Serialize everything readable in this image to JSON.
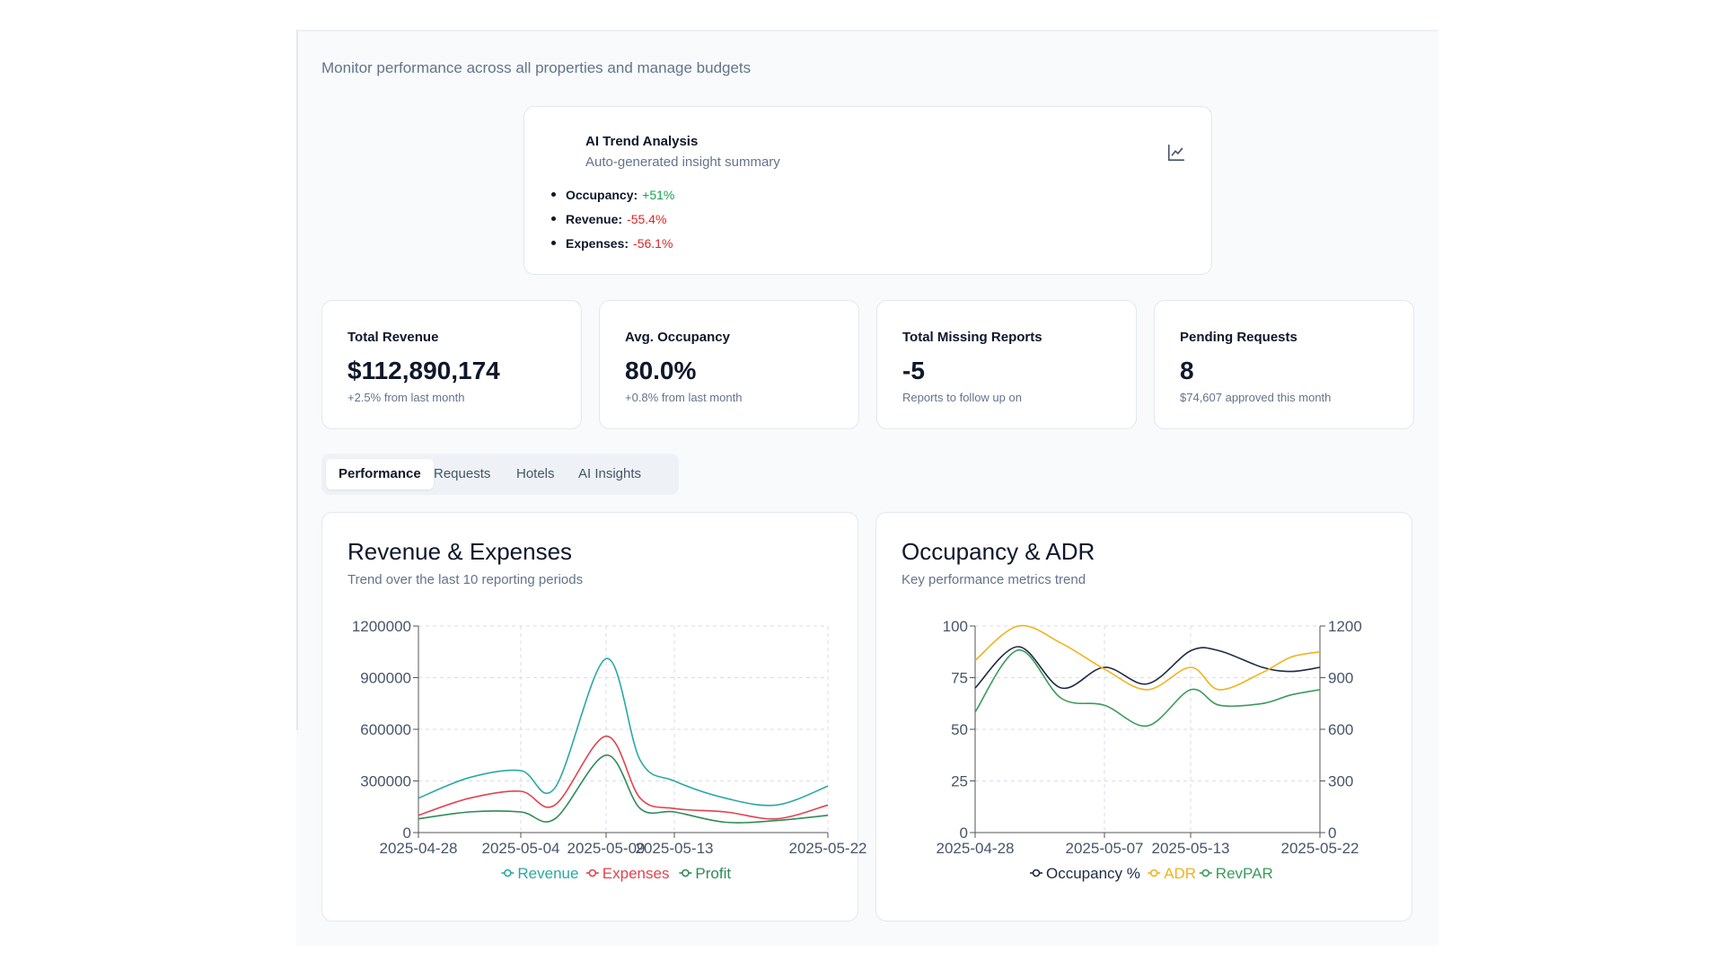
{
  "page": {
    "subtitle": "Monitor performance across all properties and manage budgets"
  },
  "ai_card": {
    "title": "AI Trend Analysis",
    "subtitle": "Auto-generated insight summary",
    "icon": "line-chart-icon",
    "items": [
      {
        "label": "Occupancy:",
        "value": "+51%",
        "trend": "up"
      },
      {
        "label": "Revenue:",
        "value": "-55.4%",
        "trend": "down"
      },
      {
        "label": "Expenses:",
        "value": "-56.1%",
        "trend": "down"
      }
    ]
  },
  "kpis": [
    {
      "title": "Total Revenue",
      "value": "$112,890,174",
      "note": "+2.5% from last month"
    },
    {
      "title": "Avg. Occupancy",
      "value": "80.0%",
      "note": "+0.8% from last month"
    },
    {
      "title": "Total Missing Reports",
      "value": "-5",
      "note": "Reports to follow up on"
    },
    {
      "title": "Pending Requests",
      "value": "8",
      "note": "$74,607 approved this month"
    }
  ],
  "tabs": [
    {
      "label": "Performance",
      "active": true
    },
    {
      "label": "Requests",
      "active": false
    },
    {
      "label": "Hotels",
      "active": false
    },
    {
      "label": "AI Insights",
      "active": false
    }
  ],
  "charts": {
    "revenue": {
      "title": "Revenue & Expenses",
      "subtitle": "Trend over the last 10 reporting periods"
    },
    "occupancy": {
      "title": "Occupancy & ADR",
      "subtitle": "Key performance metrics trend"
    }
  },
  "chart_data": [
    {
      "type": "line",
      "title": "Revenue & Expenses",
      "x": [
        "2025-04-28",
        "2025-05-01",
        "2025-05-04",
        "2025-05-06",
        "2025-05-09",
        "2025-05-11",
        "2025-05-13",
        "2025-05-16",
        "2025-05-19",
        "2025-05-22"
      ],
      "x_ticks": [
        "2025-04-28",
        "2025-05-04",
        "2025-05-09",
        "2025-05-13",
        "2025-05-22"
      ],
      "ylim": [
        0,
        1200000
      ],
      "y_ticks": [
        0,
        300000,
        600000,
        900000,
        1200000
      ],
      "grid": true,
      "legend": "bottom",
      "series": [
        {
          "name": "Revenue",
          "color": "#2aa8a4",
          "values": [
            200000,
            320000,
            360000,
            260000,
            1010000,
            420000,
            300000,
            200000,
            160000,
            270000
          ]
        },
        {
          "name": "Expenses",
          "color": "#e0434e",
          "values": [
            100000,
            200000,
            240000,
            160000,
            560000,
            200000,
            140000,
            120000,
            80000,
            160000
          ]
        },
        {
          "name": "Profit",
          "color": "#2e8b57",
          "values": [
            80000,
            120000,
            120000,
            80000,
            450000,
            140000,
            120000,
            60000,
            70000,
            100000
          ]
        }
      ]
    },
    {
      "type": "line",
      "title": "Occupancy & ADR",
      "x": [
        "2025-04-28",
        "2025-05-01",
        "2025-05-04",
        "2025-05-07",
        "2025-05-10",
        "2025-05-13",
        "2025-05-15",
        "2025-05-18",
        "2025-05-20",
        "2025-05-22"
      ],
      "x_ticks": [
        "2025-04-28",
        "2025-05-07",
        "2025-05-13",
        "2025-05-22"
      ],
      "ylim_left": [
        0,
        100
      ],
      "y_ticks_left": [
        0,
        25,
        50,
        75,
        100
      ],
      "ylim_right": [
        0,
        1200
      ],
      "y_ticks_right": [
        0,
        300,
        600,
        900,
        1200
      ],
      "grid": true,
      "legend": "bottom",
      "series": [
        {
          "name": "Occupancy %",
          "axis": "left",
          "color": "#1e2a44",
          "values": [
            70,
            90,
            70,
            80,
            72,
            88,
            88,
            80,
            78,
            80
          ]
        },
        {
          "name": "ADR",
          "axis": "right",
          "color": "#f2b21b",
          "values": [
            1000,
            1200,
            1100,
            950,
            830,
            960,
            830,
            930,
            1020,
            1050
          ]
        },
        {
          "name": "RevPAR",
          "axis": "right",
          "color": "#3a9b5c",
          "values": [
            700,
            1060,
            780,
            740,
            620,
            830,
            740,
            750,
            800,
            830
          ]
        }
      ]
    }
  ]
}
